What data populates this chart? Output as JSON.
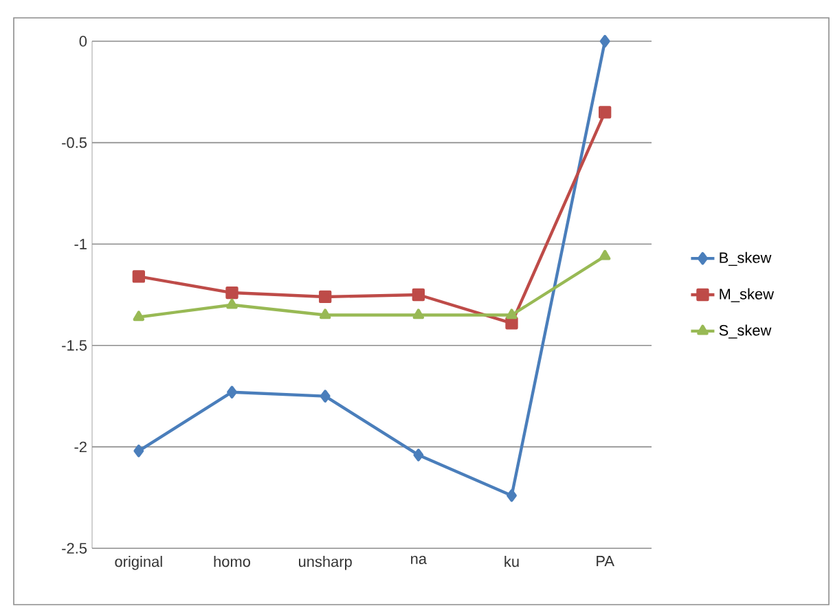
{
  "chart_data": {
    "type": "line",
    "categories": [
      "original",
      "homo",
      "unsharp",
      "na",
      "ku",
      "PA"
    ],
    "series": [
      {
        "name": "B_skew",
        "color": "#4a7ebb",
        "marker": "diamond",
        "values": [
          -2.02,
          -1.73,
          -1.75,
          -2.04,
          -2.24,
          0
        ]
      },
      {
        "name": "M_skew",
        "color": "#be4b48",
        "marker": "square",
        "values": [
          -1.16,
          -1.24,
          -1.26,
          -1.25,
          -1.39,
          -0.35
        ]
      },
      {
        "name": "S_skew",
        "color": "#98b954",
        "marker": "triangle",
        "values": [
          -1.36,
          -1.3,
          -1.35,
          -1.35,
          -1.35,
          -1.06
        ]
      }
    ],
    "ylim": [
      -2.5,
      0
    ],
    "yticks": [
      -2.5,
      -2,
      -1.5,
      -1,
      -0.5,
      0
    ],
    "grid": "y",
    "legend": "right",
    "line_style": "solid"
  }
}
